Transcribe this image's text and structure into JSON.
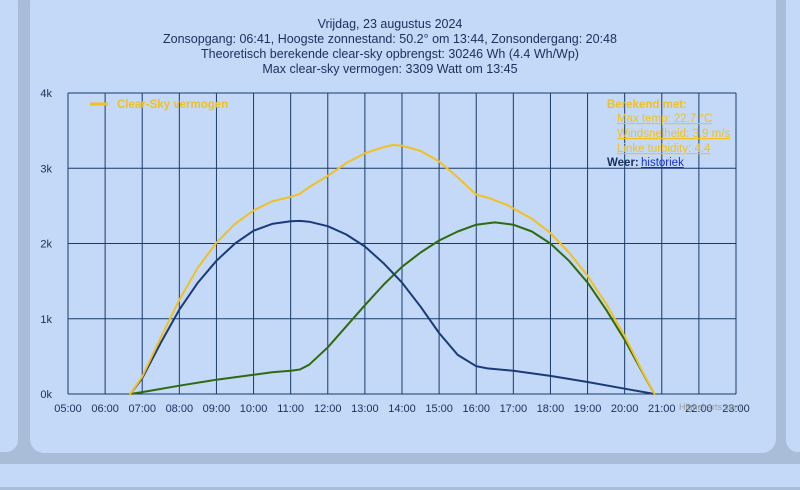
{
  "header": {
    "line1": "Vrijdag, 23 augustus 2024",
    "line2": "Zonsopgang: 06:41, Hoogste zonnestand: 50.2° om 13:44, Zonsondergang: 20:48",
    "line3": "Theoretisch berekende clear-sky opbrengst: 30246 Wh (4.4 Wh/Wp)",
    "line4": "Max clear-sky vermogen: 3309 Watt om 13:45"
  },
  "panel": {
    "title": "Berekend met:",
    "max_temp": "Max temp: 22.7 °C",
    "wind": "Windsnelheid: 3.9 m/s",
    "linke": "Linke turbidity: 4.4",
    "weer_label": "Weer:",
    "weer_link": "historiek"
  },
  "credits": "Highcharts.com",
  "colors": {
    "clear_sky": "#f1c021",
    "east": "#1a3a7a",
    "west": "#2f6a10",
    "grid": "#1a3a6a"
  },
  "chart_data": {
    "type": "line",
    "x_unit": "hour",
    "xlim": [
      5,
      23
    ],
    "ylim": [
      0,
      4000
    ],
    "x_ticks": [
      "05:00",
      "06:00",
      "07:00",
      "08:00",
      "09:00",
      "10:00",
      "11:00",
      "12:00",
      "13:00",
      "14:00",
      "15:00",
      "16:00",
      "17:00",
      "18:00",
      "19:00",
      "20:00",
      "21:00",
      "22:00",
      "23:00"
    ],
    "y_ticks": [
      {
        "value": 0,
        "label": "0k"
      },
      {
        "value": 1000,
        "label": "1k"
      },
      {
        "value": 2000,
        "label": "2k"
      },
      {
        "value": 3000,
        "label": "3k"
      },
      {
        "value": 4000,
        "label": "4k"
      }
    ],
    "legend_position": "top-left",
    "series": [
      {
        "name": "Clear-Sky vermogen",
        "color": "#f1c021",
        "show_in_legend": true,
        "points": [
          [
            6.68,
            0
          ],
          [
            7.0,
            230
          ],
          [
            7.5,
            750
          ],
          [
            8.0,
            1250
          ],
          [
            8.5,
            1680
          ],
          [
            9.0,
            2010
          ],
          [
            9.5,
            2260
          ],
          [
            10.0,
            2440
          ],
          [
            10.5,
            2560
          ],
          [
            11.0,
            2620
          ],
          [
            11.25,
            2660
          ],
          [
            11.5,
            2750
          ],
          [
            12.0,
            2900
          ],
          [
            12.5,
            3070
          ],
          [
            13.0,
            3200
          ],
          [
            13.5,
            3280
          ],
          [
            13.75,
            3309
          ],
          [
            14.0,
            3300
          ],
          [
            14.5,
            3230
          ],
          [
            15.0,
            3090
          ],
          [
            15.5,
            2880
          ],
          [
            16.0,
            2650
          ],
          [
            16.3,
            2610
          ],
          [
            16.8,
            2520
          ],
          [
            17.5,
            2330
          ],
          [
            18.0,
            2140
          ],
          [
            18.5,
            1880
          ],
          [
            19.0,
            1570
          ],
          [
            19.5,
            1200
          ],
          [
            20.0,
            770
          ],
          [
            20.5,
            280
          ],
          [
            20.8,
            0
          ]
        ]
      },
      {
        "name": "",
        "color": "#1a3a7a",
        "show_in_legend": false,
        "points": [
          [
            6.68,
            0
          ],
          [
            7.0,
            210
          ],
          [
            7.5,
            680
          ],
          [
            8.0,
            1120
          ],
          [
            8.5,
            1480
          ],
          [
            9.0,
            1770
          ],
          [
            9.5,
            2000
          ],
          [
            10.0,
            2170
          ],
          [
            10.5,
            2260
          ],
          [
            11.0,
            2295
          ],
          [
            11.25,
            2300
          ],
          [
            11.5,
            2290
          ],
          [
            12.0,
            2230
          ],
          [
            12.5,
            2120
          ],
          [
            13.0,
            1960
          ],
          [
            13.5,
            1740
          ],
          [
            14.0,
            1480
          ],
          [
            14.5,
            1160
          ],
          [
            15.0,
            810
          ],
          [
            15.5,
            520
          ],
          [
            16.0,
            370
          ],
          [
            16.3,
            340
          ],
          [
            17.0,
            310
          ],
          [
            18.0,
            240
          ],
          [
            19.0,
            160
          ],
          [
            20.0,
            70
          ],
          [
            20.8,
            0
          ]
        ]
      },
      {
        "name": "",
        "color": "#2f6a10",
        "show_in_legend": false,
        "points": [
          [
            6.68,
            0
          ],
          [
            7.0,
            25
          ],
          [
            8.0,
            110
          ],
          [
            9.0,
            190
          ],
          [
            10.0,
            255
          ],
          [
            10.5,
            290
          ],
          [
            11.0,
            310
          ],
          [
            11.25,
            325
          ],
          [
            11.5,
            390
          ],
          [
            12.0,
            620
          ],
          [
            12.5,
            900
          ],
          [
            13.0,
            1180
          ],
          [
            13.5,
            1450
          ],
          [
            14.0,
            1690
          ],
          [
            14.5,
            1880
          ],
          [
            15.0,
            2040
          ],
          [
            15.5,
            2160
          ],
          [
            16.0,
            2250
          ],
          [
            16.5,
            2280
          ],
          [
            17.0,
            2250
          ],
          [
            17.5,
            2160
          ],
          [
            18.0,
            2000
          ],
          [
            18.5,
            1770
          ],
          [
            19.0,
            1480
          ],
          [
            19.5,
            1120
          ],
          [
            20.0,
            720
          ],
          [
            20.5,
            270
          ],
          [
            20.8,
            0
          ]
        ]
      }
    ]
  }
}
